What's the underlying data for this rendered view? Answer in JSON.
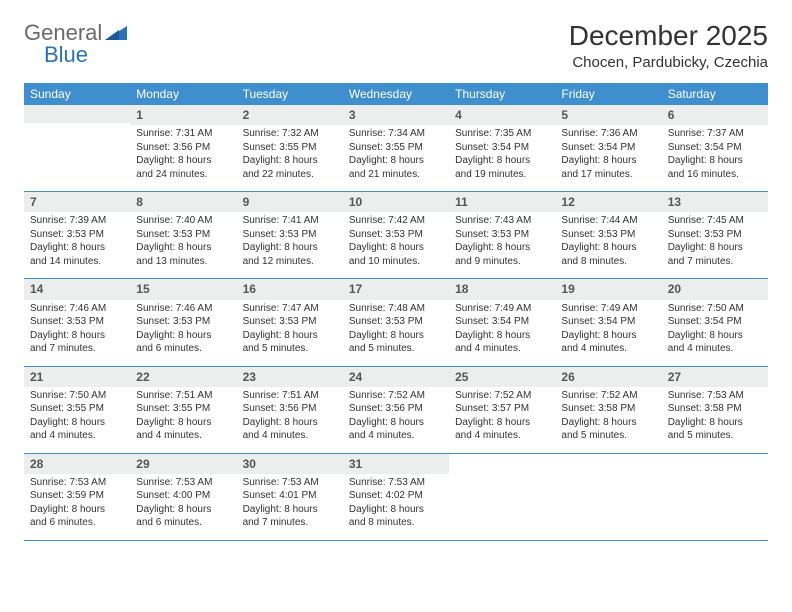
{
  "logo": {
    "general": "General",
    "blue": "Blue"
  },
  "title": "December 2025",
  "location": "Chocen, Pardubicky, Czechia",
  "colors": {
    "header_bg": "#3f8fcf",
    "header_text": "#ffffff",
    "daynum_bg": "#eceded",
    "rule": "#3f8fcf",
    "logo_gray": "#6a6a6a",
    "logo_blue": "#2a73b8"
  },
  "weekdays": [
    "Sunday",
    "Monday",
    "Tuesday",
    "Wednesday",
    "Thursday",
    "Friday",
    "Saturday"
  ],
  "days": {
    "1": {
      "sunrise": "Sunrise: 7:31 AM",
      "sunset": "Sunset: 3:56 PM",
      "daylight1": "Daylight: 8 hours",
      "daylight2": "and 24 minutes."
    },
    "2": {
      "sunrise": "Sunrise: 7:32 AM",
      "sunset": "Sunset: 3:55 PM",
      "daylight1": "Daylight: 8 hours",
      "daylight2": "and 22 minutes."
    },
    "3": {
      "sunrise": "Sunrise: 7:34 AM",
      "sunset": "Sunset: 3:55 PM",
      "daylight1": "Daylight: 8 hours",
      "daylight2": "and 21 minutes."
    },
    "4": {
      "sunrise": "Sunrise: 7:35 AM",
      "sunset": "Sunset: 3:54 PM",
      "daylight1": "Daylight: 8 hours",
      "daylight2": "and 19 minutes."
    },
    "5": {
      "sunrise": "Sunrise: 7:36 AM",
      "sunset": "Sunset: 3:54 PM",
      "daylight1": "Daylight: 8 hours",
      "daylight2": "and 17 minutes."
    },
    "6": {
      "sunrise": "Sunrise: 7:37 AM",
      "sunset": "Sunset: 3:54 PM",
      "daylight1": "Daylight: 8 hours",
      "daylight2": "and 16 minutes."
    },
    "7": {
      "sunrise": "Sunrise: 7:39 AM",
      "sunset": "Sunset: 3:53 PM",
      "daylight1": "Daylight: 8 hours",
      "daylight2": "and 14 minutes."
    },
    "8": {
      "sunrise": "Sunrise: 7:40 AM",
      "sunset": "Sunset: 3:53 PM",
      "daylight1": "Daylight: 8 hours",
      "daylight2": "and 13 minutes."
    },
    "9": {
      "sunrise": "Sunrise: 7:41 AM",
      "sunset": "Sunset: 3:53 PM",
      "daylight1": "Daylight: 8 hours",
      "daylight2": "and 12 minutes."
    },
    "10": {
      "sunrise": "Sunrise: 7:42 AM",
      "sunset": "Sunset: 3:53 PM",
      "daylight1": "Daylight: 8 hours",
      "daylight2": "and 10 minutes."
    },
    "11": {
      "sunrise": "Sunrise: 7:43 AM",
      "sunset": "Sunset: 3:53 PM",
      "daylight1": "Daylight: 8 hours",
      "daylight2": "and 9 minutes."
    },
    "12": {
      "sunrise": "Sunrise: 7:44 AM",
      "sunset": "Sunset: 3:53 PM",
      "daylight1": "Daylight: 8 hours",
      "daylight2": "and 8 minutes."
    },
    "13": {
      "sunrise": "Sunrise: 7:45 AM",
      "sunset": "Sunset: 3:53 PM",
      "daylight1": "Daylight: 8 hours",
      "daylight2": "and 7 minutes."
    },
    "14": {
      "sunrise": "Sunrise: 7:46 AM",
      "sunset": "Sunset: 3:53 PM",
      "daylight1": "Daylight: 8 hours",
      "daylight2": "and 7 minutes."
    },
    "15": {
      "sunrise": "Sunrise: 7:46 AM",
      "sunset": "Sunset: 3:53 PM",
      "daylight1": "Daylight: 8 hours",
      "daylight2": "and 6 minutes."
    },
    "16": {
      "sunrise": "Sunrise: 7:47 AM",
      "sunset": "Sunset: 3:53 PM",
      "daylight1": "Daylight: 8 hours",
      "daylight2": "and 5 minutes."
    },
    "17": {
      "sunrise": "Sunrise: 7:48 AM",
      "sunset": "Sunset: 3:53 PM",
      "daylight1": "Daylight: 8 hours",
      "daylight2": "and 5 minutes."
    },
    "18": {
      "sunrise": "Sunrise: 7:49 AM",
      "sunset": "Sunset: 3:54 PM",
      "daylight1": "Daylight: 8 hours",
      "daylight2": "and 4 minutes."
    },
    "19": {
      "sunrise": "Sunrise: 7:49 AM",
      "sunset": "Sunset: 3:54 PM",
      "daylight1": "Daylight: 8 hours",
      "daylight2": "and 4 minutes."
    },
    "20": {
      "sunrise": "Sunrise: 7:50 AM",
      "sunset": "Sunset: 3:54 PM",
      "daylight1": "Daylight: 8 hours",
      "daylight2": "and 4 minutes."
    },
    "21": {
      "sunrise": "Sunrise: 7:50 AM",
      "sunset": "Sunset: 3:55 PM",
      "daylight1": "Daylight: 8 hours",
      "daylight2": "and 4 minutes."
    },
    "22": {
      "sunrise": "Sunrise: 7:51 AM",
      "sunset": "Sunset: 3:55 PM",
      "daylight1": "Daylight: 8 hours",
      "daylight2": "and 4 minutes."
    },
    "23": {
      "sunrise": "Sunrise: 7:51 AM",
      "sunset": "Sunset: 3:56 PM",
      "daylight1": "Daylight: 8 hours",
      "daylight2": "and 4 minutes."
    },
    "24": {
      "sunrise": "Sunrise: 7:52 AM",
      "sunset": "Sunset: 3:56 PM",
      "daylight1": "Daylight: 8 hours",
      "daylight2": "and 4 minutes."
    },
    "25": {
      "sunrise": "Sunrise: 7:52 AM",
      "sunset": "Sunset: 3:57 PM",
      "daylight1": "Daylight: 8 hours",
      "daylight2": "and 4 minutes."
    },
    "26": {
      "sunrise": "Sunrise: 7:52 AM",
      "sunset": "Sunset: 3:58 PM",
      "daylight1": "Daylight: 8 hours",
      "daylight2": "and 5 minutes."
    },
    "27": {
      "sunrise": "Sunrise: 7:53 AM",
      "sunset": "Sunset: 3:58 PM",
      "daylight1": "Daylight: 8 hours",
      "daylight2": "and 5 minutes."
    },
    "28": {
      "sunrise": "Sunrise: 7:53 AM",
      "sunset": "Sunset: 3:59 PM",
      "daylight1": "Daylight: 8 hours",
      "daylight2": "and 6 minutes."
    },
    "29": {
      "sunrise": "Sunrise: 7:53 AM",
      "sunset": "Sunset: 4:00 PM",
      "daylight1": "Daylight: 8 hours",
      "daylight2": "and 6 minutes."
    },
    "30": {
      "sunrise": "Sunrise: 7:53 AM",
      "sunset": "Sunset: 4:01 PM",
      "daylight1": "Daylight: 8 hours",
      "daylight2": "and 7 minutes."
    },
    "31": {
      "sunrise": "Sunrise: 7:53 AM",
      "sunset": "Sunset: 4:02 PM",
      "daylight1": "Daylight: 8 hours",
      "daylight2": "and 8 minutes."
    }
  },
  "layout": {
    "start_offset": 1,
    "num_days": 31
  }
}
